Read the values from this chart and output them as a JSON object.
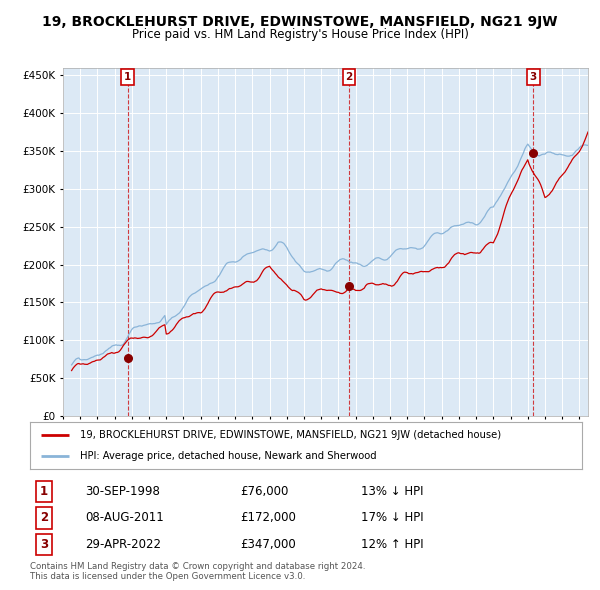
{
  "title": "19, BROCKLEHURST DRIVE, EDWINSTOWE, MANSFIELD, NG21 9JW",
  "subtitle": "Price paid vs. HM Land Registry's House Price Index (HPI)",
  "title_fontsize": 10,
  "subtitle_fontsize": 8.5,
  "plot_bg_color": "#dce9f5",
  "hpi_color": "#8ab4d8",
  "price_color": "#cc0000",
  "ylim": [
    0,
    460000
  ],
  "yticks": [
    0,
    50000,
    100000,
    150000,
    200000,
    250000,
    300000,
    350000,
    400000,
    450000
  ],
  "xstart": 1995.3,
  "xend": 2025.5,
  "sales": [
    {
      "date_label": "30-SEP-1998",
      "year": 1998.75,
      "price": 76000,
      "hpi_pct": "13%",
      "hpi_dir": "↓",
      "num": 1
    },
    {
      "date_label": "08-AUG-2011",
      "year": 2011.6,
      "price": 172000,
      "hpi_pct": "17%",
      "hpi_dir": "↓",
      "num": 2
    },
    {
      "date_label": "29-APR-2022",
      "year": 2022.33,
      "price": 347000,
      "hpi_pct": "12%",
      "hpi_dir": "↑",
      "num": 3
    }
  ],
  "legend_label_price": "19, BROCKLEHURST DRIVE, EDWINSTOWE, MANSFIELD, NG21 9JW (detached house)",
  "legend_label_hpi": "HPI: Average price, detached house, Newark and Sherwood",
  "footer1": "Contains HM Land Registry data © Crown copyright and database right 2024.",
  "footer2": "This data is licensed under the Open Government Licence v3.0."
}
